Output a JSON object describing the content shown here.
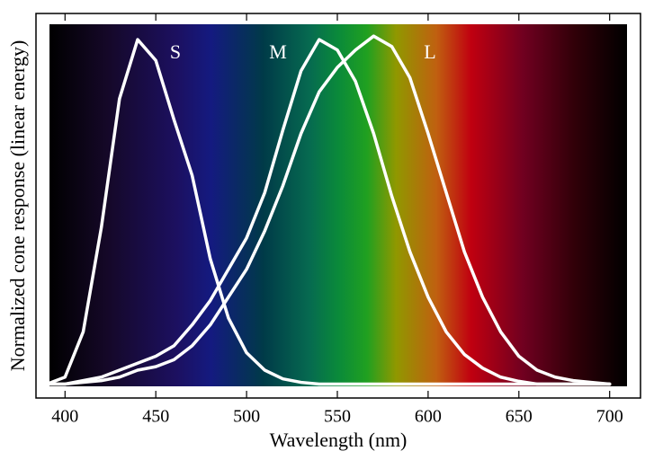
{
  "chart_data": {
    "type": "line",
    "x_label": "Wavelength (nm)",
    "y_label": "Normalized cone response (linear energy)",
    "x": [
      390,
      400,
      410,
      420,
      430,
      440,
      450,
      460,
      470,
      480,
      490,
      500,
      510,
      520,
      530,
      540,
      550,
      560,
      570,
      580,
      590,
      600,
      610,
      620,
      630,
      640,
      650,
      660,
      670,
      680,
      690,
      700
    ],
    "series": [
      {
        "name": "S",
        "color": "#ffffff",
        "values": [
          0,
          0.02,
          0.15,
          0.45,
          0.82,
          0.99,
          0.93,
          0.76,
          0.6,
          0.36,
          0.19,
          0.09,
          0.04,
          0.015,
          0.005,
          0,
          0,
          0,
          0,
          0,
          0,
          0,
          0,
          0,
          0,
          0,
          0,
          0,
          0,
          0,
          0,
          0
        ]
      },
      {
        "name": "M",
        "color": "#ffffff",
        "values": [
          0,
          0,
          0.01,
          0.02,
          0.04,
          0.06,
          0.08,
          0.11,
          0.17,
          0.24,
          0.33,
          0.42,
          0.55,
          0.73,
          0.9,
          0.99,
          0.96,
          0.87,
          0.72,
          0.54,
          0.38,
          0.25,
          0.15,
          0.085,
          0.046,
          0.02,
          0.008,
          0,
          0,
          0,
          0,
          0
        ]
      },
      {
        "name": "L",
        "color": "#ffffff",
        "values": [
          0,
          0,
          0.005,
          0.01,
          0.02,
          0.04,
          0.05,
          0.07,
          0.11,
          0.17,
          0.25,
          0.33,
          0.44,
          0.57,
          0.72,
          0.84,
          0.91,
          0.96,
          1.0,
          0.97,
          0.88,
          0.72,
          0.55,
          0.38,
          0.25,
          0.15,
          0.08,
          0.04,
          0.02,
          0.01,
          0.005,
          0
        ]
      }
    ],
    "xlim": [
      384,
      717
    ],
    "xticks": [
      400,
      450,
      500,
      550,
      600,
      650,
      700
    ],
    "ylim": [
      -0.04,
      1.065
    ]
  }
}
